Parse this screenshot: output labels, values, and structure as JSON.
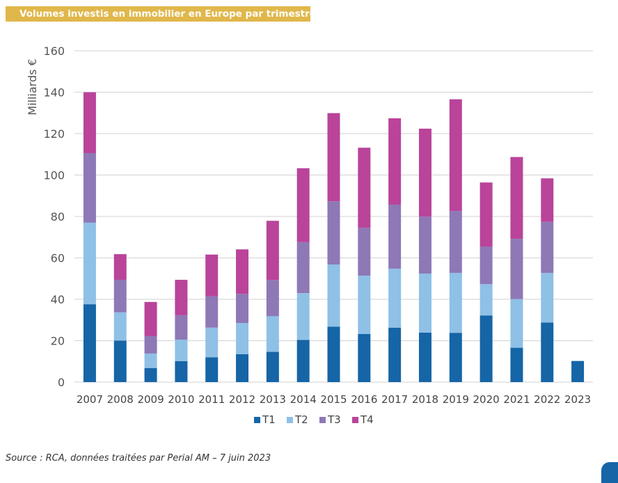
{
  "header": {
    "title": "Volumes investis en immobilier en Europe par trimestre"
  },
  "footer": {
    "source": "Source : RCA, données traitées par Perial AM –  7 juin 2023"
  },
  "chart_data": {
    "type": "bar",
    "stacked": true,
    "title": "Volumes investis en immobilier en Europe par trimestre",
    "xlabel": "",
    "ylabel": "Milliards €",
    "ylim": [
      0,
      160
    ],
    "yticks": [
      0,
      20,
      40,
      60,
      80,
      100,
      120,
      140,
      160
    ],
    "grid": true,
    "legend_position": "bottom-center",
    "categories": [
      "2007",
      "2008",
      "2009",
      "2010",
      "2011",
      "2012",
      "2013",
      "2014",
      "2015",
      "2016",
      "2017",
      "2018",
      "2019",
      "2020",
      "2021",
      "2022",
      "2023"
    ],
    "series": [
      {
        "name": "T1",
        "color": "#1565A7",
        "values": [
          37.6,
          20.0,
          6.8,
          10.1,
          12.0,
          13.5,
          14.6,
          20.4,
          26.8,
          23.2,
          26.3,
          23.9,
          23.8,
          32.2,
          16.6,
          28.8,
          10.2
        ]
      },
      {
        "name": "T2",
        "color": "#8FC0E6",
        "values": [
          39.4,
          13.7,
          7.0,
          10.4,
          14.3,
          15.0,
          17.2,
          22.6,
          30.0,
          28.2,
          28.5,
          28.5,
          28.9,
          15.1,
          23.5,
          23.9,
          0
        ]
      },
      {
        "name": "T3",
        "color": "#8E78B6",
        "values": [
          33.6,
          15.7,
          8.4,
          11.8,
          15.1,
          14.1,
          17.5,
          24.6,
          30.5,
          23.1,
          30.9,
          27.5,
          29.9,
          18.1,
          29.1,
          24.7,
          0
        ]
      },
      {
        "name": "T4",
        "color": "#B9449A",
        "values": [
          29.4,
          12.4,
          16.5,
          17.1,
          20.2,
          21.5,
          28.6,
          35.7,
          42.6,
          38.7,
          41.7,
          42.5,
          54.0,
          31.0,
          39.5,
          21.0,
          0
        ]
      }
    ]
  }
}
